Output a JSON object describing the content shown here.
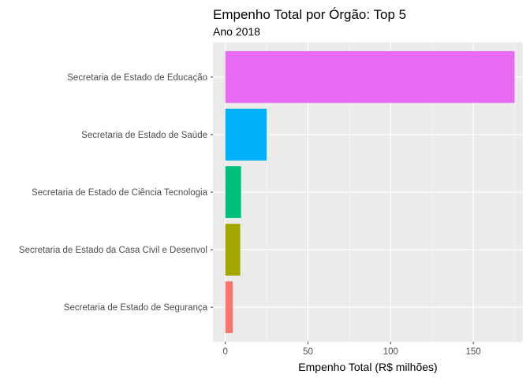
{
  "chart_data": {
    "type": "bar",
    "orientation": "horizontal",
    "title": "Empenho Total por Órgão: Top 5",
    "subtitle": "Ano 2018",
    "xlabel": "Empenho Total (R$ milhões)",
    "ylabel": "",
    "xlim": [
      -7.5,
      180
    ],
    "x_ticks": [
      0,
      50,
      100,
      150
    ],
    "x_tick_labels": [
      "0",
      "50",
      "100",
      "150"
    ],
    "grid": true,
    "legend": "none",
    "categories": [
      "Secretaria de Estado de Educação",
      "Secretaria de Estado de Saúde",
      "Secretaria de Estado de Ciência Tecnologia",
      "Secretaria de Estado da Casa Civil e Desenvol",
      "Secretaria de Estado de Segurança"
    ],
    "values": [
      175,
      25,
      9.5,
      9,
      4.5
    ],
    "colors": [
      "#E76BF3",
      "#00B0F6",
      "#00BF7D",
      "#A3A500",
      "#F8766D"
    ]
  },
  "colors": {
    "panel_background": "#EBEBEB",
    "grid_major": "#FFFFFF",
    "grid_minor": "#F5F5F5",
    "tick_text": "#4D4D4D"
  }
}
